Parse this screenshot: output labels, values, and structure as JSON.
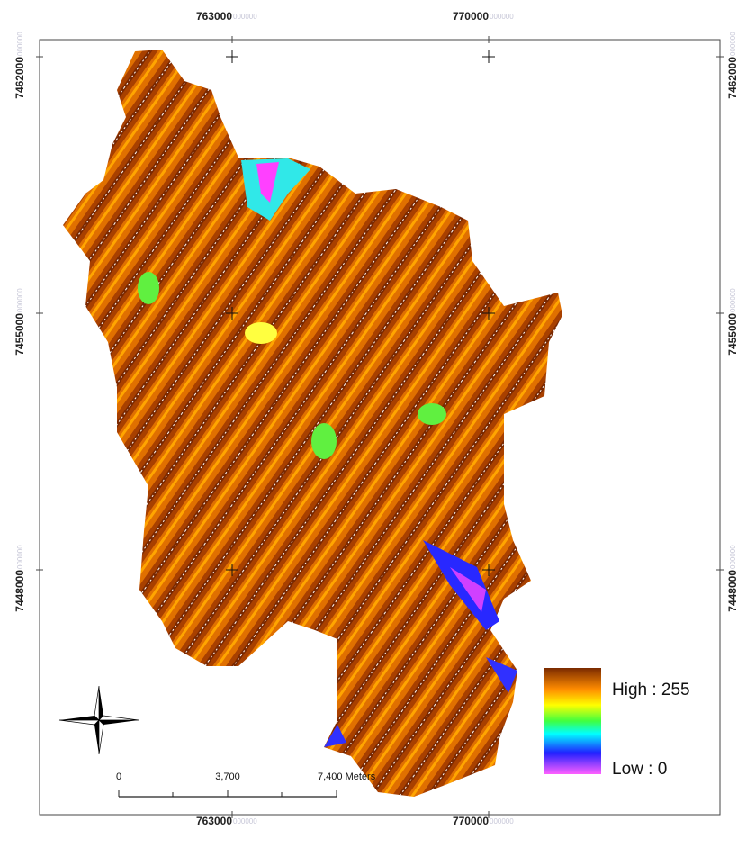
{
  "map": {
    "x_labels": [
      "763000",
      "770000"
    ],
    "y_labels": [
      "7462000",
      "7455000",
      "7448000"
    ],
    "label_suffix": "000000",
    "legend": {
      "high": "High : 255",
      "low": "Low : 0"
    },
    "scale_bar": {
      "labels": [
        "0",
        "3,700",
        "7,400 Meters"
      ]
    }
  }
}
